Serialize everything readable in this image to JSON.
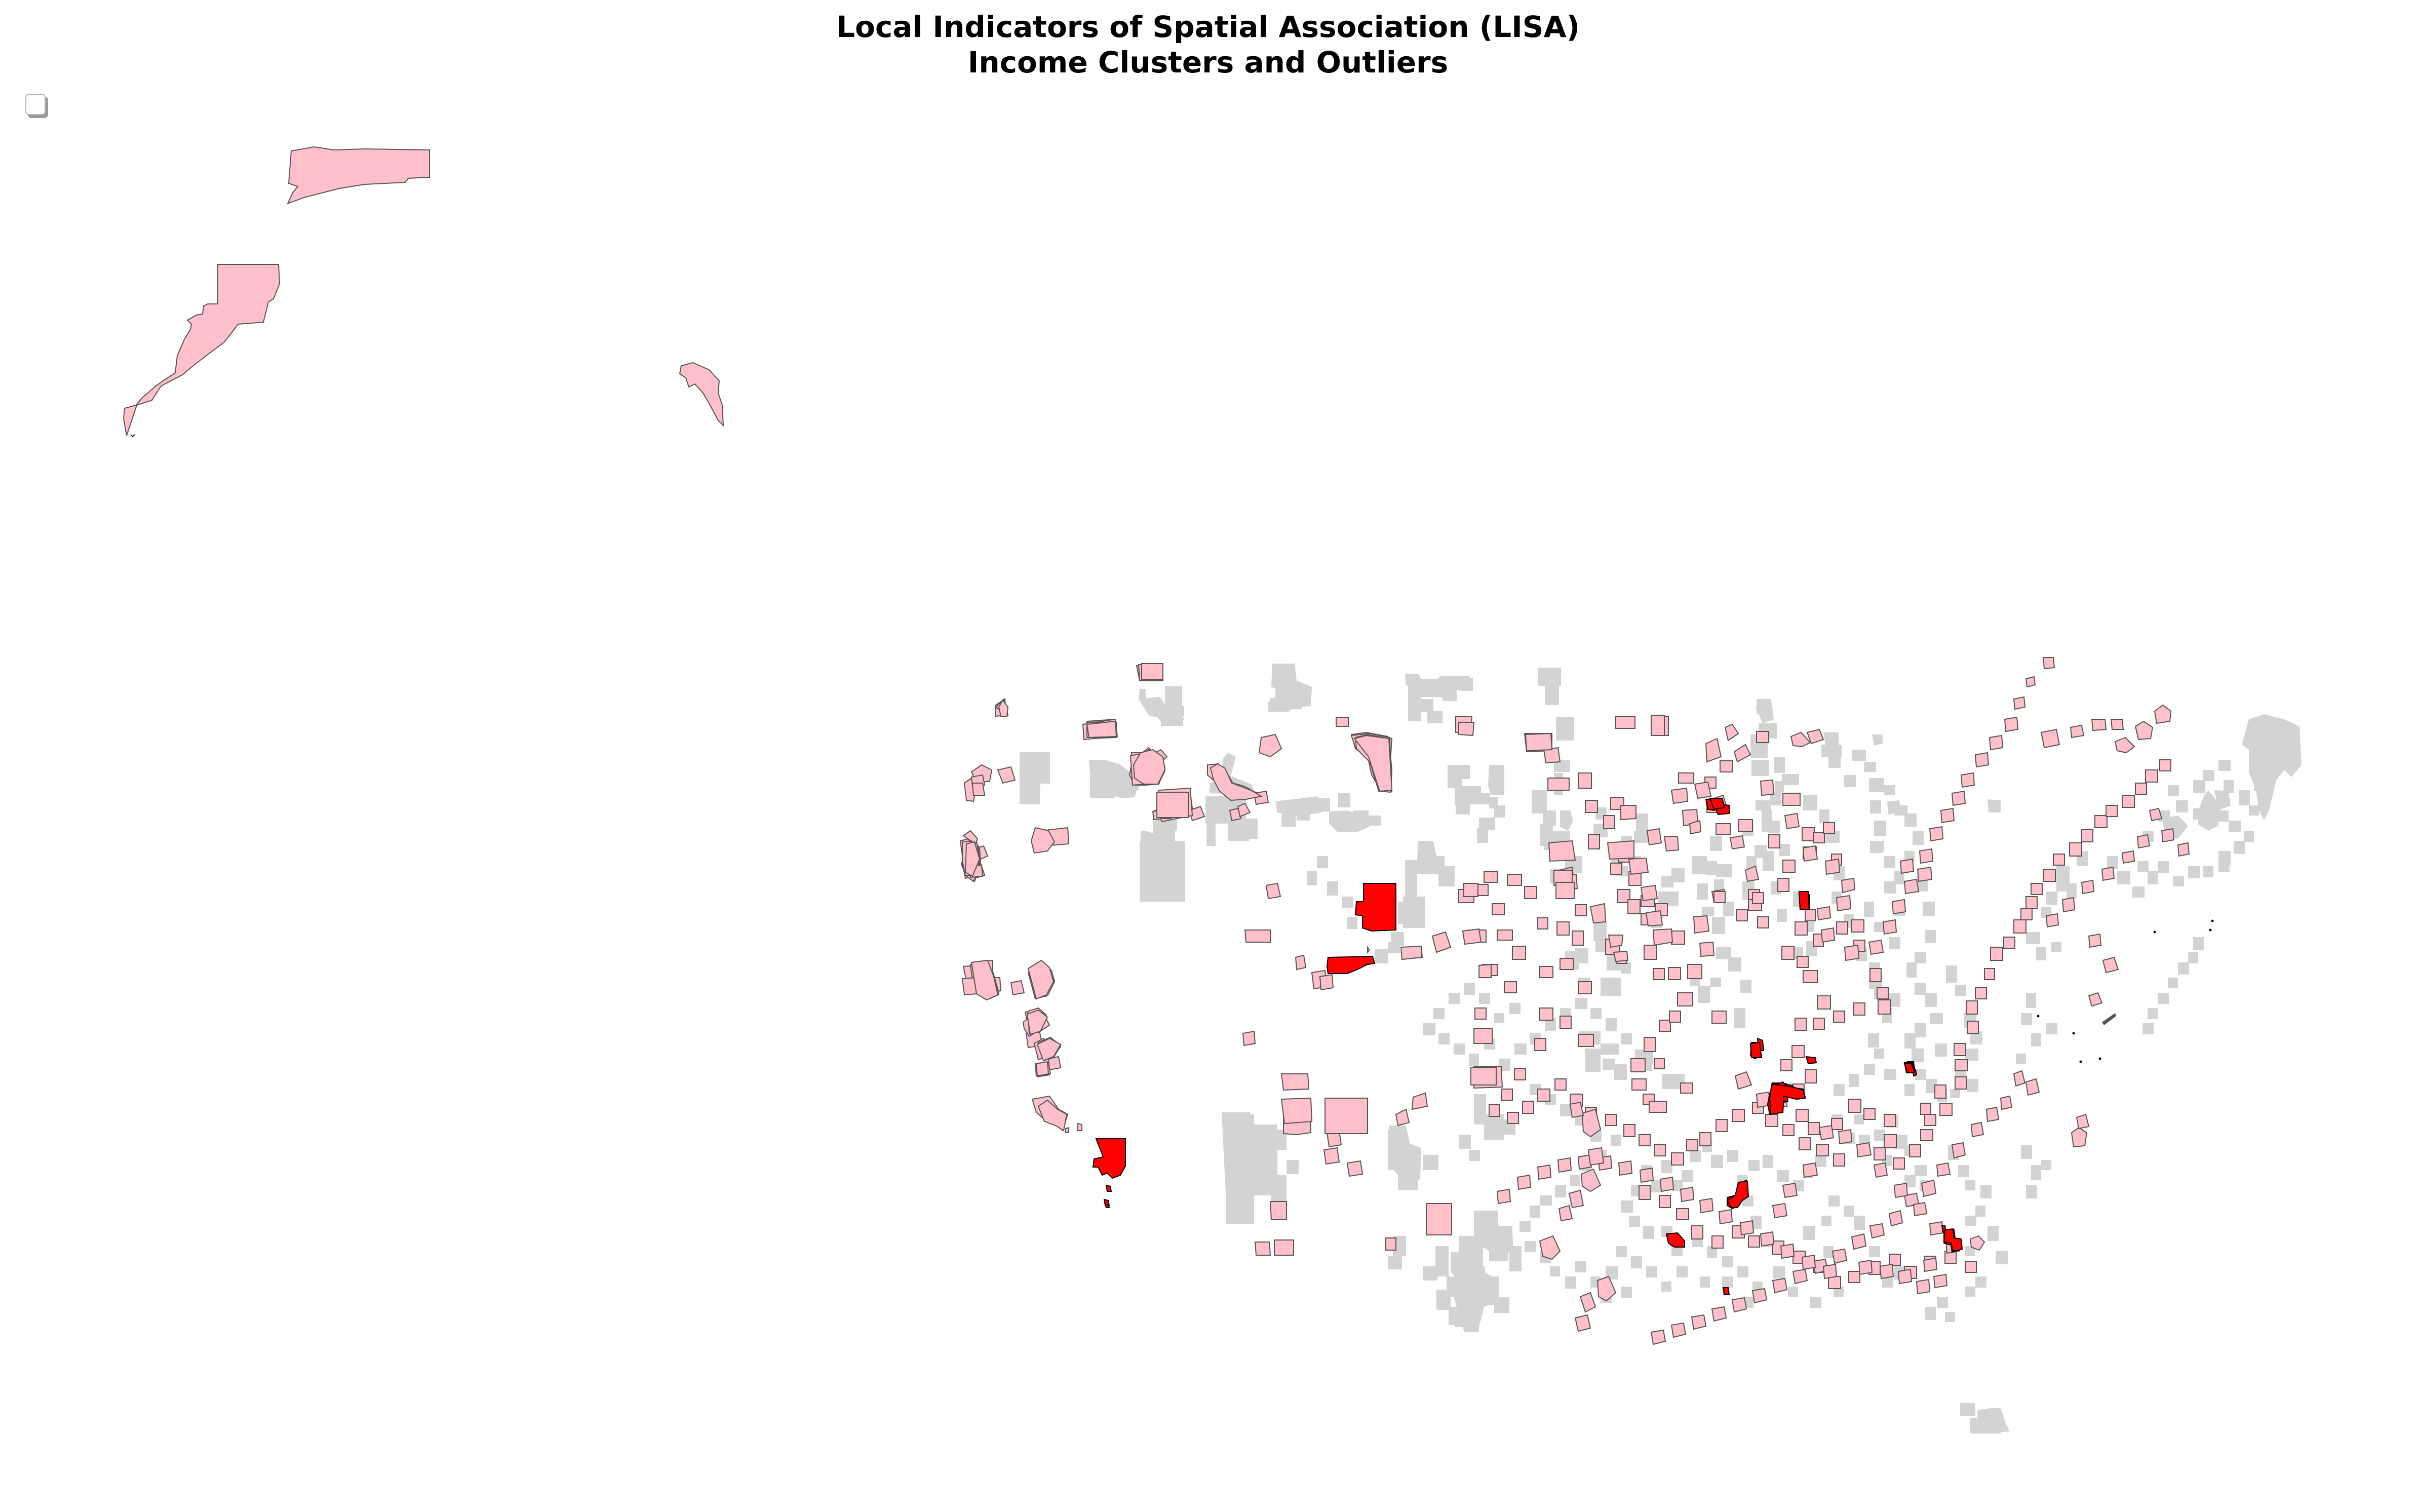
{
  "title": {
    "line1": "Local Indicators of Spatial Association (LISA)",
    "line2": "Income Clusters and Outliers"
  },
  "legend": {
    "entries": []
  },
  "colors": {
    "not_significant": "#d3d3d3",
    "high_high": "#ff0000",
    "low_high": "#ffc0cb",
    "outline": "#555555",
    "background": "#ffffff"
  },
  "map": {
    "region": "United States counties",
    "categories": [
      "not_significant",
      "high_high",
      "low_high"
    ]
  }
}
